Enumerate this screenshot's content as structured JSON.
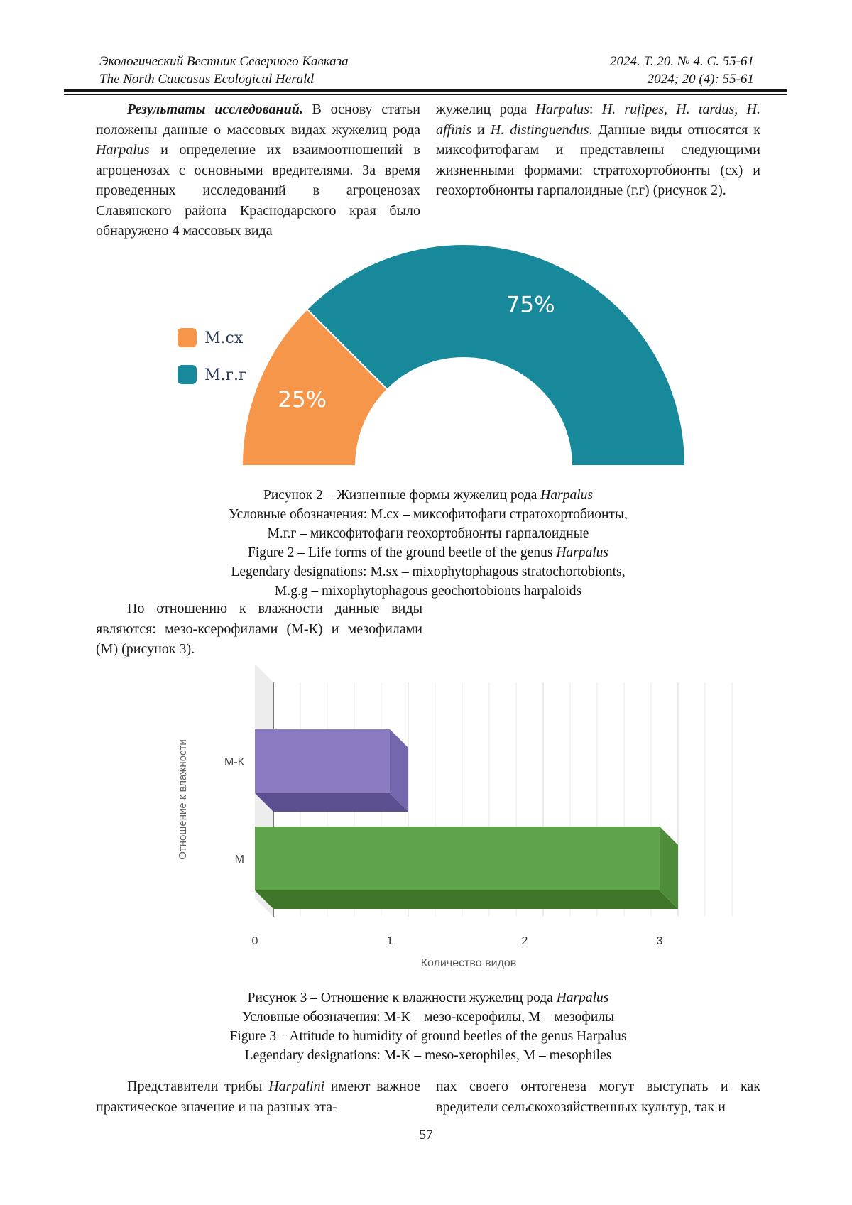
{
  "header": {
    "journal_ru": "Экологический Вестник Северного Кавказа",
    "journal_en": "The North Caucasus Ecological Herald",
    "issue_ru": "2024. Т. 20. № 4. С. 55-61",
    "issue_en": "2024; 20 (4): 55-61"
  },
  "paragraphs": {
    "p1_left": [
      {
        "t": "Результаты исследований.",
        "b": 1,
        "i": 1
      },
      {
        "t": " В основу статьи положены данные о массовых видах жужелиц рода "
      },
      {
        "t": "Harpalus",
        "i": 1
      },
      {
        "t": " и определение их взаимоотношений в агроценозах с основными вредителями. За время проведенных исследований в агроценозах Славянского района Краснодарского края было обнаружено 4 массовых вида"
      }
    ],
    "p1_right": [
      {
        "t": "жужелиц рода "
      },
      {
        "t": "Harpalus",
        "i": 1
      },
      {
        "t": ": "
      },
      {
        "t": "H. rufipes, H. tardus, H. affinis",
        "i": 1
      },
      {
        "t": " и "
      },
      {
        "t": "H. distinguendus",
        "i": 1
      },
      {
        "t": ". Данные виды относятся к миксофитофагам и представлены следующими жизненными формами: стратохортобионты (сх) и геохортобионты гарпалоидные (г.г) (рисунок 2)."
      }
    ],
    "p2": [
      {
        "t": "По отношению к влажности данные виды являются: мезо-ксерофилами (М-К) и мезофилами (М) (рисунок 3)."
      }
    ],
    "p3_left": [
      {
        "t": "Представители трибы "
      },
      {
        "t": "Harpalini",
        "i": 1
      },
      {
        "t": " имеют важное практическое значение и на разных эта-"
      }
    ],
    "p3_right": [
      {
        "t": "пах своего онтогенеза могут выступать и как вредители сельскохозяйственных культур, так и"
      }
    ]
  },
  "captions": {
    "fig2": [
      [
        {
          "t": "Рисунок 2 – Жизненные формы жужелиц рода "
        },
        {
          "t": "Harpalus",
          "i": 1
        }
      ],
      [
        {
          "t": "Условные обозначения: М.сх – миксофитофаги стратохортобионты,"
        }
      ],
      [
        {
          "t": "М.г.г – миксофитофаги геохортобионты гарпалоидные"
        }
      ],
      [
        {
          "t": "Figure 2 – Life forms of the ground beetle of the genus "
        },
        {
          "t": "Harpalus",
          "i": 1
        }
      ],
      [
        {
          "t": "Legendary designations: M.sx – mixophytophagous stratochortobionts,"
        }
      ],
      [
        {
          "t": "M.g.g – mixophytophagous geochortobionts harpaloids"
        }
      ]
    ],
    "fig3": [
      [
        {
          "t": "Рисунок 3 – Отношение к влажности жужелиц рода "
        },
        {
          "t": "Harpalus",
          "i": 1
        }
      ],
      [
        {
          "t": "Условные обозначения: М-К – мезо-ксерофилы, М – мезофилы"
        }
      ],
      [
        {
          "t": "Figure 3 – Attitude to humidity of ground beetles of the genus Harpalus"
        }
      ],
      [
        {
          "t": "Legendary designations: M-K – meso-xerophiles, M – mesophiles"
        }
      ]
    ]
  },
  "page_number": "57",
  "chart_data": [
    {
      "type": "pie",
      "variant": "half-donut",
      "categories": [
        "М.сх",
        "М.г.г"
      ],
      "values": [
        25,
        75
      ],
      "labels": [
        "25%",
        "75%"
      ],
      "colors": [
        "#F5964A",
        "#17899B"
      ],
      "label_color": "#ffffff",
      "legend_position": "left",
      "legend_text_color": "#2F3E5C",
      "start_angle_deg": 180,
      "total_span_deg": 180
    },
    {
      "type": "bar",
      "orientation": "horizontal",
      "style": "3d",
      "categories": [
        "М-К",
        "М"
      ],
      "values": [
        1,
        3
      ],
      "xlabel": "Количество видов",
      "ylabel": "Отношение к влажности",
      "xlim": [
        0,
        3
      ],
      "xticks": [
        0,
        1,
        2,
        3
      ],
      "minor_grid_step": 0.2,
      "grid": true,
      "bar_colors": [
        {
          "front": "#8B7CC1",
          "side": "#7567AD",
          "bottom": "#5C4F8F"
        },
        {
          "front": "#5FA44B",
          "side": "#4E8C3A",
          "bottom": "#3F7629"
        }
      ],
      "wall_color": "#ededed",
      "axis_color": "#4a4a4a"
    }
  ]
}
